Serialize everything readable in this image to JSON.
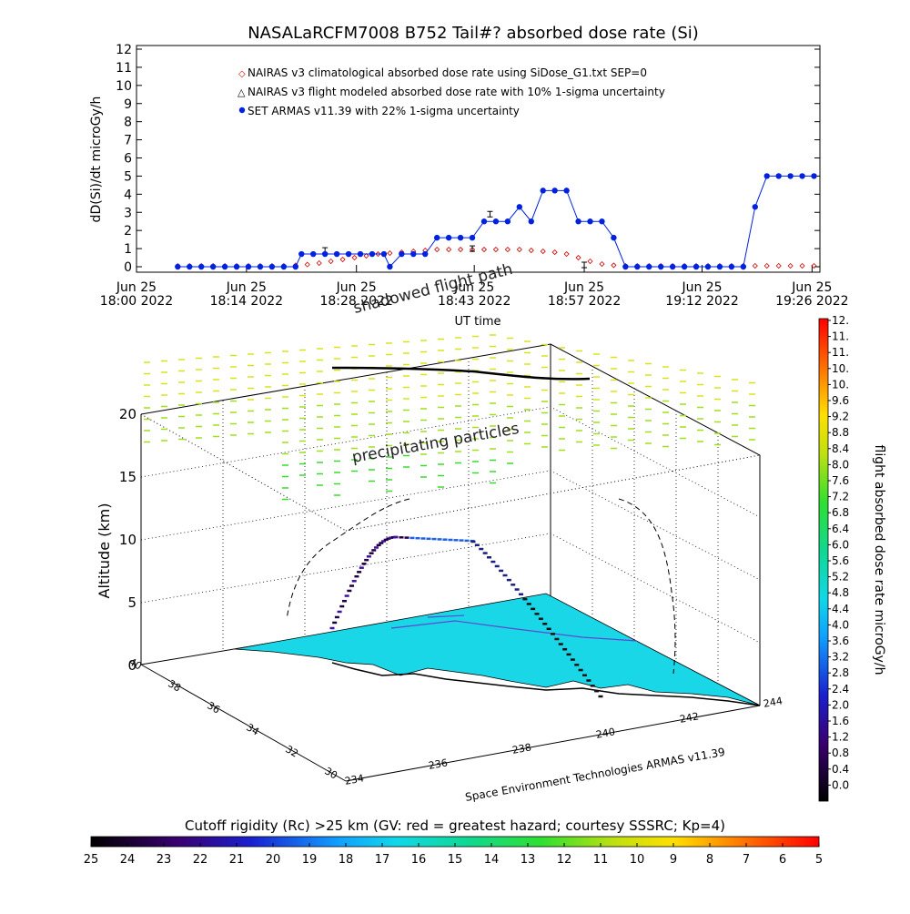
{
  "chart_data": [
    {
      "type": "line",
      "title": "NASALaRCFM7008  B752 Tail#? absorbed dose rate (Si)",
      "ylabel": "dD(Si)/dt microGy/h",
      "xlabel": "UT time",
      "ylim": [
        0,
        12
      ],
      "yticks": [
        "0",
        "1",
        "2",
        "3",
        "4",
        "5",
        "6",
        "7",
        "8",
        "9",
        "10",
        "11",
        "12"
      ],
      "xticks": [
        {
          "top": "Jun 25",
          "bottom": "18:00 2022"
        },
        {
          "top": "Jun 25",
          "bottom": "18:14 2022"
        },
        {
          "top": "Jun 25",
          "bottom": "18:28 2022"
        },
        {
          "top": "Jun 25",
          "bottom": "18:43 2022"
        },
        {
          "top": "Jun 25",
          "bottom": "18:57 2022"
        },
        {
          "top": "Jun 25",
          "bottom": "19:12 2022"
        },
        {
          "top": "Jun 25",
          "bottom": "19:26 2022"
        }
      ],
      "legend_placement": "top-left",
      "series": [
        {
          "name": "NAIRAS v3 climatological absorbed dose rate using SiDose_G1.txt SEP=0",
          "color": "#cc0000",
          "marker": "diamond",
          "x_minutes": [
            7,
            9,
            11,
            13,
            15,
            17,
            19,
            21,
            23,
            25,
            27,
            29,
            31,
            33,
            35,
            37,
            39,
            41,
            43,
            45,
            47,
            49,
            51,
            53,
            55,
            57,
            59,
            61,
            63,
            65,
            67,
            69,
            71,
            73,
            75,
            77,
            79,
            81,
            83,
            85,
            87,
            89,
            91,
            93,
            95,
            97,
            99,
            101,
            103,
            105,
            107,
            109,
            111,
            113,
            115
          ],
          "values": [
            0.05,
            0.05,
            0.05,
            0.05,
            0.05,
            0.05,
            0.05,
            0.05,
            0.05,
            0.05,
            0.08,
            0.12,
            0.2,
            0.3,
            0.4,
            0.5,
            0.6,
            0.7,
            0.75,
            0.8,
            0.85,
            0.9,
            0.95,
            0.95,
            0.95,
            0.95,
            0.95,
            0.95,
            0.95,
            0.95,
            0.9,
            0.85,
            0.8,
            0.7,
            0.5,
            0.3,
            0.15,
            0.08,
            0.05,
            0.05,
            0.05,
            0.05,
            0.05,
            0.05,
            0.05,
            0.05,
            0.05,
            0.05,
            0.05,
            0.05,
            0.05,
            0.05,
            0.05,
            0.05,
            0.05
          ]
        },
        {
          "name": "NAIRAS v3 flight modeled absorbed dose rate with 10% 1-sigma uncertainty",
          "color": "#000000",
          "marker": "triangle",
          "x_minutes": [
            32,
            57,
            60,
            76
          ],
          "values": [
            0.9,
            1.0,
            2.9,
            0.1
          ]
        },
        {
          "name": "SET ARMAS v11.39 with 22% 1-sigma uncertainty",
          "color": "#0022dd",
          "marker": "circle",
          "x_minutes": [
            7,
            9,
            11,
            13,
            15,
            17,
            19,
            21,
            23,
            25,
            27,
            28,
            30,
            32,
            34,
            36,
            38,
            40,
            42,
            43,
            45,
            47,
            49,
            51,
            53,
            55,
            57,
            59,
            61,
            63,
            65,
            67,
            69,
            71,
            73,
            75,
            77,
            79,
            81,
            83,
            85,
            87,
            89,
            91,
            93,
            95,
            97,
            99,
            101,
            103,
            105,
            107,
            109,
            111,
            113,
            115
          ],
          "values": [
            0,
            0,
            0,
            0,
            0,
            0,
            0,
            0,
            0,
            0,
            0,
            0.7,
            0.7,
            0.7,
            0.7,
            0.7,
            0.7,
            0.7,
            0.7,
            0,
            0.7,
            0.7,
            0.7,
            1.6,
            1.6,
            1.6,
            1.6,
            2.5,
            2.5,
            2.5,
            3.3,
            2.5,
            4.2,
            4.2,
            4.2,
            2.5,
            2.5,
            2.5,
            1.6,
            0,
            0,
            0,
            0,
            0,
            0,
            0,
            0,
            0,
            0,
            0,
            3.3,
            5.0,
            5.0,
            5.0,
            5.0,
            5.0
          ]
        }
      ]
    },
    {
      "type": "surface3d",
      "zlabel": "Altitude (km)",
      "zticks": [
        "0",
        "5",
        "10",
        "15",
        "20"
      ],
      "lat_ticks": [
        "30",
        "32",
        "34",
        "36",
        "38",
        "40"
      ],
      "lon_ticks": [
        "234",
        "236",
        "238",
        "240",
        "242",
        "244"
      ],
      "annotations": [
        "shadowed flight path",
        "precipitating particles",
        "Space Environment Technologies ARMAS v11.39"
      ],
      "colorbar_label": "flight absorbed dose rate microGy/h",
      "colorbar_ticks": [
        "12.",
        "11.",
        "11.",
        "10.",
        "10.",
        "9.6",
        "9.2",
        "8.8",
        "8.4",
        "8.0",
        "7.6",
        "7.2",
        "6.8",
        "6.4",
        "6.0",
        "5.6",
        "5.2",
        "4.8",
        "4.4",
        "4.0",
        "3.6",
        "3.2",
        "2.8",
        "2.4",
        "2.0",
        "1.6",
        "1.2",
        "0.8",
        "0.4",
        "0.0"
      ]
    }
  ],
  "cutoff_bar": {
    "title": "Cutoff rigidity (Rc) >25 km (GV: red = greatest hazard; courtesy SSSRC; Kp=4)",
    "ticks": [
      "25",
      "24",
      "23",
      "22",
      "21",
      "20",
      "19",
      "18",
      "17",
      "16",
      "15",
      "14",
      "13",
      "12",
      "11",
      "10",
      "9",
      "8",
      "7",
      "6",
      "5"
    ]
  }
}
